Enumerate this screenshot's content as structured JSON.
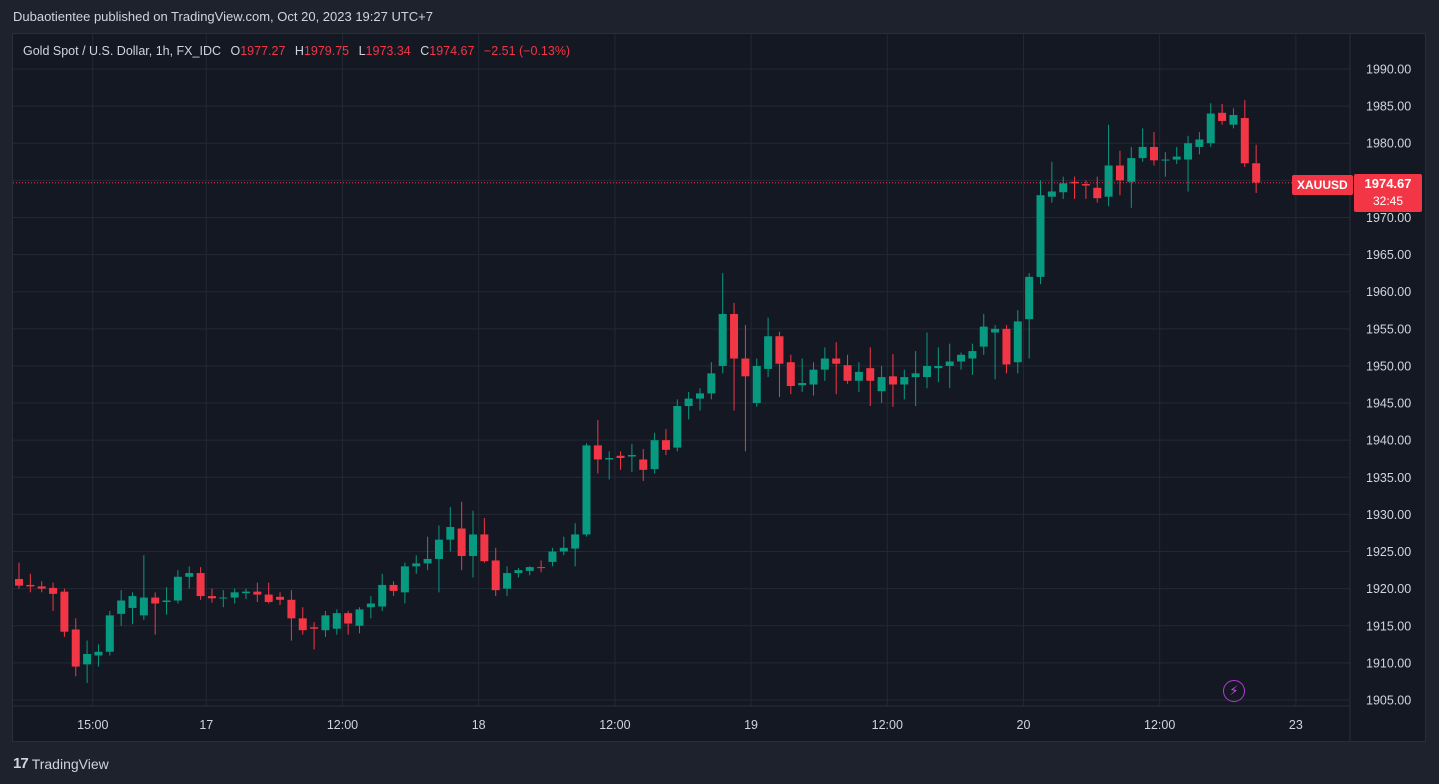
{
  "publisher_line": "Dubaotientee published on TradingView.com, Oct 20, 2023 19:27 UTC+7",
  "legend": {
    "instrument": "Gold Spot / U.S. Dollar, 1h, FX_IDC",
    "o_label": "O",
    "o_value": "1977.27",
    "h_label": "H",
    "h_value": "1979.75",
    "l_label": "L",
    "l_value": "1973.34",
    "c_label": "C",
    "c_value": "1974.67",
    "change": "−2.51 (−0.13%)"
  },
  "price_tag": {
    "symbol": "XAUUSD",
    "price": "1974.67",
    "countdown": "32:45"
  },
  "footer": {
    "brand": "TradingView",
    "brand_mark_icon": "tradingview-logo-icon"
  },
  "bolt_icon": "lightning-bolt-icon",
  "colors": {
    "up": "#089981",
    "down": "#f23645",
    "background": "#141823",
    "grid": "#232834"
  },
  "chart_data": {
    "type": "candlestick",
    "title": "Gold Spot / U.S. Dollar, 1h, FX_IDC",
    "last_price": 1974.67,
    "ylim": [
      1903,
      1993
    ],
    "y_ticks": [
      1905,
      1910,
      1915,
      1920,
      1925,
      1930,
      1935,
      1940,
      1945,
      1950,
      1955,
      1960,
      1965,
      1970,
      1975,
      1980,
      1985,
      1990
    ],
    "y_tick_labels": [
      "1905.00",
      "1910.00",
      "1915.00",
      "1920.00",
      "1925.00",
      "1930.00",
      "1935.00",
      "1940.00",
      "1945.00",
      "1950.00",
      "1955.00",
      "1960.00",
      "1965.00",
      "1970.00",
      "1975.00",
      "1980.00",
      "1985.00",
      "1990.00"
    ],
    "x_ticks": [
      {
        "label": "15:00",
        "index": 6.5
      },
      {
        "label": "17",
        "index": 16.5
      },
      {
        "label": "12:00",
        "index": 28.5
      },
      {
        "label": "18",
        "index": 40.5
      },
      {
        "label": "12:00",
        "index": 52.5
      },
      {
        "label": "19",
        "index": 64.5
      },
      {
        "label": "12:00",
        "index": 76.5
      },
      {
        "label": "20",
        "index": 88.5
      },
      {
        "label": "12:00",
        "index": 100.5
      },
      {
        "label": "23",
        "index": 112.5
      }
    ],
    "candles": [
      [
        1921.3,
        1923.5,
        1920.0,
        1920.4
      ],
      [
        1920.5,
        1922.0,
        1919.5,
        1920.3
      ],
      [
        1920.3,
        1921.0,
        1919.5,
        1920.0
      ],
      [
        1920.1,
        1920.8,
        1917.0,
        1919.3
      ],
      [
        1919.6,
        1920.0,
        1913.5,
        1914.2
      ],
      [
        1914.5,
        1916.0,
        1908.2,
        1909.5
      ],
      [
        1909.8,
        1913.0,
        1907.3,
        1911.2
      ],
      [
        1911.0,
        1912.5,
        1909.5,
        1911.5
      ],
      [
        1911.5,
        1917.0,
        1911.0,
        1916.4
      ],
      [
        1916.6,
        1919.8,
        1915.0,
        1918.4
      ],
      [
        1917.4,
        1919.5,
        1915.2,
        1919.0
      ],
      [
        1916.4,
        1924.5,
        1915.8,
        1918.8
      ],
      [
        1918.8,
        1919.5,
        1913.8,
        1918.0
      ],
      [
        1918.2,
        1920.2,
        1916.5,
        1918.4
      ],
      [
        1918.4,
        1922.5,
        1918.0,
        1921.6
      ],
      [
        1921.6,
        1923.0,
        1920.0,
        1922.1
      ],
      [
        1922.1,
        1922.9,
        1918.5,
        1919.0
      ],
      [
        1919.0,
        1920.0,
        1918.1,
        1918.7
      ],
      [
        1918.7,
        1919.8,
        1917.5,
        1918.8
      ],
      [
        1918.8,
        1920.0,
        1918.0,
        1919.5
      ],
      [
        1919.4,
        1920.0,
        1918.6,
        1919.6
      ],
      [
        1919.6,
        1920.8,
        1918.2,
        1919.2
      ],
      [
        1919.2,
        1920.8,
        1918.0,
        1918.2
      ],
      [
        1918.9,
        1919.5,
        1917.8,
        1918.5
      ],
      [
        1918.5,
        1919.8,
        1913.0,
        1916.0
      ],
      [
        1916.0,
        1917.5,
        1913.8,
        1914.4
      ],
      [
        1914.8,
        1915.5,
        1911.8,
        1914.6
      ],
      [
        1914.4,
        1917.0,
        1913.5,
        1916.4
      ],
      [
        1914.6,
        1917.2,
        1913.8,
        1916.7
      ],
      [
        1916.7,
        1917.0,
        1913.8,
        1915.3
      ],
      [
        1915.0,
        1917.5,
        1914.0,
        1917.2
      ],
      [
        1917.5,
        1919.0,
        1916.0,
        1918.0
      ],
      [
        1917.6,
        1922.0,
        1917.0,
        1920.5
      ],
      [
        1920.5,
        1921.0,
        1919.0,
        1919.7
      ],
      [
        1919.5,
        1923.5,
        1918.0,
        1923.0
      ],
      [
        1923.0,
        1924.5,
        1922.0,
        1923.4
      ],
      [
        1923.4,
        1927.0,
        1922.5,
        1924.0
      ],
      [
        1924.0,
        1928.5,
        1919.5,
        1926.6
      ],
      [
        1926.6,
        1931.0,
        1925.0,
        1928.3
      ],
      [
        1928.1,
        1931.7,
        1922.5,
        1924.4
      ],
      [
        1924.4,
        1930.5,
        1921.5,
        1927.3
      ],
      [
        1927.3,
        1929.5,
        1923.5,
        1923.7
      ],
      [
        1923.8,
        1925.5,
        1919.0,
        1919.8
      ],
      [
        1920.0,
        1923.0,
        1919.0,
        1922.1
      ],
      [
        1922.1,
        1922.8,
        1921.5,
        1922.5
      ],
      [
        1922.4,
        1923.0,
        1921.8,
        1922.9
      ],
      [
        1922.9,
        1923.8,
        1922.2,
        1922.8
      ],
      [
        1923.6,
        1925.5,
        1923.0,
        1925.0
      ],
      [
        1925.0,
        1927.0,
        1924.5,
        1925.5
      ],
      [
        1925.4,
        1928.8,
        1923.0,
        1927.3
      ],
      [
        1927.3,
        1939.6,
        1927.0,
        1939.3
      ],
      [
        1939.3,
        1942.7,
        1935.5,
        1937.4
      ],
      [
        1937.4,
        1938.5,
        1934.7,
        1937.6
      ],
      [
        1937.9,
        1938.5,
        1936.0,
        1937.6
      ],
      [
        1937.8,
        1939.5,
        1935.7,
        1938.0
      ],
      [
        1937.4,
        1938.8,
        1934.5,
        1936.0
      ],
      [
        1936.1,
        1941.0,
        1935.5,
        1940.0
      ],
      [
        1940.0,
        1941.5,
        1938.0,
        1938.7
      ],
      [
        1939.0,
        1945.5,
        1938.5,
        1944.6
      ],
      [
        1944.6,
        1946.5,
        1942.8,
        1945.6
      ],
      [
        1945.6,
        1947.0,
        1944.0,
        1946.3
      ],
      [
        1946.3,
        1950.5,
        1945.5,
        1949.0
      ],
      [
        1950.0,
        1962.5,
        1949.0,
        1957.0
      ],
      [
        1957.0,
        1958.5,
        1944.0,
        1951.0
      ],
      [
        1951.0,
        1955.5,
        1938.5,
        1948.6
      ],
      [
        1945.0,
        1951.0,
        1944.5,
        1950.0
      ],
      [
        1949.6,
        1956.5,
        1948.5,
        1954.0
      ],
      [
        1954.0,
        1954.6,
        1945.8,
        1950.3
      ],
      [
        1950.5,
        1951.5,
        1946.2,
        1947.3
      ],
      [
        1947.4,
        1951.0,
        1946.5,
        1947.7
      ],
      [
        1947.5,
        1950.5,
        1946.0,
        1949.5
      ],
      [
        1949.5,
        1952.5,
        1948.0,
        1951.0
      ],
      [
        1951.0,
        1953.2,
        1946.2,
        1950.3
      ],
      [
        1950.1,
        1951.5,
        1947.6,
        1948.0
      ],
      [
        1948.0,
        1950.5,
        1946.5,
        1949.2
      ],
      [
        1949.7,
        1952.5,
        1944.6,
        1948.0
      ],
      [
        1946.6,
        1950.0,
        1945.0,
        1948.5
      ],
      [
        1948.6,
        1951.6,
        1944.5,
        1947.5
      ],
      [
        1947.5,
        1949.5,
        1945.5,
        1948.5
      ],
      [
        1948.5,
        1952.0,
        1944.6,
        1949.0
      ],
      [
        1948.5,
        1954.5,
        1947.0,
        1950.0
      ],
      [
        1949.7,
        1952.5,
        1947.8,
        1950.0
      ],
      [
        1950.0,
        1953.0,
        1947.0,
        1950.6
      ],
      [
        1950.6,
        1951.8,
        1949.5,
        1951.5
      ],
      [
        1951.0,
        1953.0,
        1948.8,
        1952.0
      ],
      [
        1952.6,
        1957.0,
        1951.5,
        1955.3
      ],
      [
        1954.5,
        1955.5,
        1948.2,
        1955.0
      ],
      [
        1955.0,
        1955.5,
        1949.0,
        1950.2
      ],
      [
        1950.5,
        1957.5,
        1949.0,
        1956.0
      ],
      [
        1956.3,
        1962.5,
        1951.0,
        1962.0
      ],
      [
        1962.0,
        1975.0,
        1961.0,
        1973.0
      ],
      [
        1972.8,
        1977.5,
        1972.0,
        1973.5
      ],
      [
        1973.4,
        1975.5,
        1972.5,
        1974.6
      ],
      [
        1974.8,
        1975.5,
        1972.5,
        1974.6
      ],
      [
        1974.5,
        1975.0,
        1972.5,
        1974.3
      ],
      [
        1974.0,
        1975.5,
        1972.0,
        1972.6
      ],
      [
        1972.8,
        1982.5,
        1971.5,
        1977.0
      ],
      [
        1977.0,
        1979.0,
        1973.0,
        1975.0
      ],
      [
        1974.8,
        1979.5,
        1971.3,
        1978.0
      ],
      [
        1978.0,
        1982.0,
        1977.5,
        1979.5
      ],
      [
        1979.5,
        1981.5,
        1977.0,
        1977.7
      ],
      [
        1977.8,
        1978.8,
        1975.5,
        1977.8
      ],
      [
        1977.8,
        1979.5,
        1977.2,
        1978.2
      ],
      [
        1977.8,
        1981.0,
        1973.5,
        1980.0
      ],
      [
        1979.5,
        1981.5,
        1978.5,
        1980.5
      ],
      [
        1980.0,
        1985.4,
        1979.5,
        1984.0
      ],
      [
        1984.1,
        1985.3,
        1982.5,
        1983.0
      ],
      [
        1982.5,
        1984.7,
        1982.0,
        1983.8
      ],
      [
        1983.4,
        1985.8,
        1976.8,
        1977.3
      ],
      [
        1977.3,
        1979.8,
        1973.3,
        1974.7
      ]
    ]
  }
}
